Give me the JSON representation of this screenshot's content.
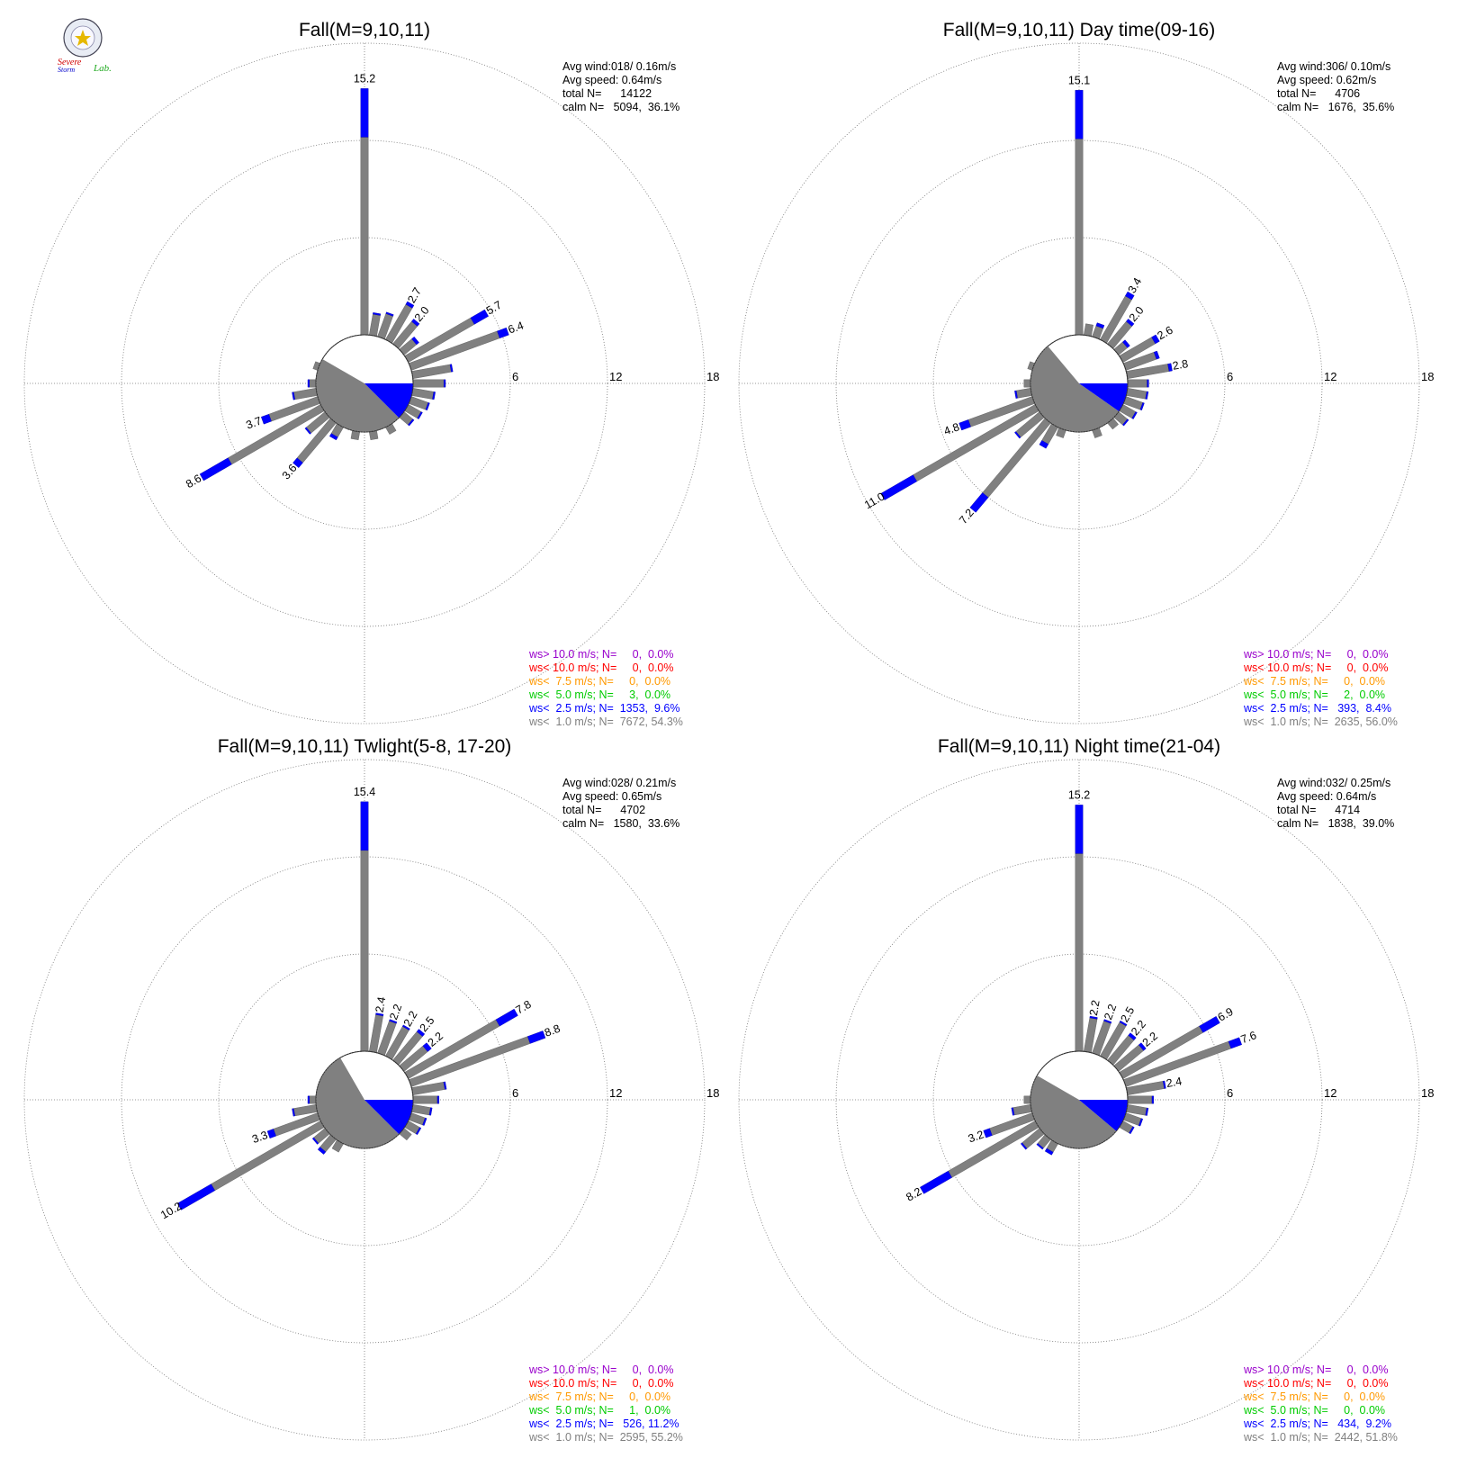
{
  "logo": {
    "text_severe": "Severe",
    "text_storm": "Storm",
    "text_lab": "Lab."
  },
  "colors": {
    "gt10": "#9900cc",
    "lt10": "#ff0000",
    "lt75": "#ff9900",
    "lt5": "#00cc00",
    "lt25": "#0000ff",
    "lt1": "#808080",
    "calm_gray": "#808080"
  },
  "chart_data": [
    {
      "type": "polar-bar (wind rose)",
      "title": "Fall(M=9,10,11)",
      "rlim": [
        0,
        18
      ],
      "ring_ticks": [
        "6",
        "12",
        "18"
      ],
      "stats": [
        "Avg wind:018/ 0.16m/s",
        "Avg speed: 0.64m/s",
        "total N=      14122",
        "calm N=   5094,  36.1%"
      ],
      "legend": [
        "ws> 10.0 m/s; N=     0,  0.0%",
        "ws< 10.0 m/s; N=     0,  0.0%",
        "ws<  7.5 m/s; N=     0,  0.0%",
        "ws<  5.0 m/s; N=     3,  0.0%",
        "ws<  2.5 m/s; N=  1353,  9.6%",
        "ws<  1.0 m/s; N=  7672, 54.3%"
      ],
      "calm_sector": {
        "blue_from_deg": 90,
        "blue_to_deg": 135,
        "gray_from_deg": 135,
        "gray_to_deg": 300
      },
      "bars": [
        {
          "dir": 0,
          "total": 15.2,
          "blue": 3.0,
          "label": "15.2"
        },
        {
          "dir": 10,
          "total": 1.4,
          "blue": 0.1
        },
        {
          "dir": 20,
          "total": 1.6,
          "blue": 0.1
        },
        {
          "dir": 30,
          "total": 2.7,
          "blue": 0.2,
          "label": "2.7"
        },
        {
          "dir": 40,
          "total": 2.0,
          "blue": 0.2,
          "label": "2.0"
        },
        {
          "dir": 50,
          "total": 1.2,
          "blue": 0.2
        },
        {
          "dir": 60,
          "total": 5.7,
          "blue": 1.0,
          "label": "5.7"
        },
        {
          "dir": 70,
          "total": 6.4,
          "blue": 0.6,
          "label": "6.4"
        },
        {
          "dir": 80,
          "total": 2.5,
          "blue": 0.1
        },
        {
          "dir": 90,
          "total": 2.0,
          "blue": 0.1
        },
        {
          "dir": 100,
          "total": 1.4,
          "blue": 0.1
        },
        {
          "dir": 110,
          "total": 1.2,
          "blue": 0.1
        },
        {
          "dir": 120,
          "total": 1.0,
          "blue": 0.1
        },
        {
          "dir": 130,
          "total": 0.8,
          "blue": 0.1
        },
        {
          "dir": 150,
          "total": 0.5,
          "blue": 0.0
        },
        {
          "dir": 170,
          "total": 0.5,
          "blue": 0.0
        },
        {
          "dir": 190,
          "total": 0.5,
          "blue": 0.0
        },
        {
          "dir": 210,
          "total": 0.9,
          "blue": 0.2
        },
        {
          "dir": 220,
          "total": 3.6,
          "blue": 0.4,
          "label": "3.6"
        },
        {
          "dir": 230,
          "total": 1.6,
          "blue": 0.1
        },
        {
          "dir": 240,
          "total": 8.6,
          "blue": 2.0,
          "label": "8.6"
        },
        {
          "dir": 250,
          "total": 3.7,
          "blue": 0.5,
          "label": "3.7"
        },
        {
          "dir": 260,
          "total": 1.5,
          "blue": 0.1
        },
        {
          "dir": 270,
          "total": 0.5,
          "blue": 0.1
        },
        {
          "dir": 290,
          "total": 0.3,
          "blue": 0.0
        }
      ]
    },
    {
      "type": "polar-bar (wind rose)",
      "title": "Fall(M=9,10,11) Day time(09-16)",
      "rlim": [
        0,
        18
      ],
      "ring_ticks": [
        "6",
        "12",
        "18"
      ],
      "stats": [
        "Avg wind:306/ 0.10m/s",
        "Avg speed: 0.62m/s",
        "total N=      4706",
        "calm N=   1676,  35.6%"
      ],
      "legend": [
        "ws> 10.0 m/s; N=     0,  0.0%",
        "ws< 10.0 m/s; N=     0,  0.0%",
        "ws<  7.5 m/s; N=     0,  0.0%",
        "ws<  5.0 m/s; N=     2,  0.0%",
        "ws<  2.5 m/s; N=   393,  8.4%",
        "ws<  1.0 m/s; N=  2635, 56.0%"
      ],
      "calm_sector": {
        "blue_from_deg": 90,
        "blue_to_deg": 125,
        "gray_from_deg": 125,
        "gray_to_deg": 320
      },
      "bars": [
        {
          "dir": 0,
          "total": 15.1,
          "blue": 3.0,
          "label": "15.1"
        },
        {
          "dir": 10,
          "total": 0.7,
          "blue": 0.0
        },
        {
          "dir": 20,
          "total": 0.9,
          "blue": 0.2
        },
        {
          "dir": 30,
          "total": 3.4,
          "blue": 0.3,
          "label": "3.4"
        },
        {
          "dir": 40,
          "total": 2.0,
          "blue": 0.2,
          "label": "2.0"
        },
        {
          "dir": 50,
          "total": 0.9,
          "blue": 0.2
        },
        {
          "dir": 60,
          "total": 2.6,
          "blue": 0.3,
          "label": "2.6"
        },
        {
          "dir": 70,
          "total": 2.2,
          "blue": 0.2
        },
        {
          "dir": 80,
          "total": 2.8,
          "blue": 0.2,
          "label": "2.8"
        },
        {
          "dir": 90,
          "total": 1.3,
          "blue": 0.1
        },
        {
          "dir": 100,
          "total": 1.3,
          "blue": 0.1
        },
        {
          "dir": 110,
          "total": 1.2,
          "blue": 0.1
        },
        {
          "dir": 120,
          "total": 1.0,
          "blue": 0.1
        },
        {
          "dir": 130,
          "total": 0.8,
          "blue": 0.1
        },
        {
          "dir": 140,
          "total": 0.5,
          "blue": 0.0
        },
        {
          "dir": 160,
          "total": 0.5,
          "blue": 0.0
        },
        {
          "dir": 200,
          "total": 0.5,
          "blue": 0.0
        },
        {
          "dir": 210,
          "total": 1.5,
          "blue": 0.3
        },
        {
          "dir": 220,
          "total": 7.2,
          "blue": 1.2,
          "label": "7.2"
        },
        {
          "dir": 230,
          "total": 2.0,
          "blue": 0.1
        },
        {
          "dir": 240,
          "total": 11.0,
          "blue": 2.3,
          "label": "11.0"
        },
        {
          "dir": 250,
          "total": 4.8,
          "blue": 0.6,
          "label": "4.8"
        },
        {
          "dir": 260,
          "total": 1.0,
          "blue": 0.1
        },
        {
          "dir": 270,
          "total": 0.4,
          "blue": 0.0
        },
        {
          "dir": 290,
          "total": 0.3,
          "blue": 0.0
        }
      ]
    },
    {
      "type": "polar-bar (wind rose)",
      "title": "Fall(M=9,10,11) Twlight(5-8, 17-20)",
      "rlim": [
        0,
        18
      ],
      "ring_ticks": [
        "6",
        "12",
        "18"
      ],
      "stats": [
        "Avg wind:028/ 0.21m/s",
        "Avg speed: 0.65m/s",
        "total N=      4702",
        "calm N=   1580,  33.6%"
      ],
      "legend": [
        "ws> 10.0 m/s; N=     0,  0.0%",
        "ws< 10.0 m/s; N=     0,  0.0%",
        "ws<  7.5 m/s; N=     0,  0.0%",
        "ws<  5.0 m/s; N=     1,  0.0%",
        "ws<  2.5 m/s; N=   526, 11.2%",
        "ws<  1.0 m/s; N=  2595, 55.2%"
      ],
      "calm_sector": {
        "blue_from_deg": 90,
        "blue_to_deg": 135,
        "gray_from_deg": 135,
        "gray_to_deg": 330
      },
      "bars": [
        {
          "dir": 0,
          "total": 15.4,
          "blue": 3.0,
          "label": "15.4"
        },
        {
          "dir": 10,
          "total": 2.4,
          "blue": 0.1,
          "label": "2.4"
        },
        {
          "dir": 20,
          "total": 2.2,
          "blue": 0.1,
          "label": "2.2"
        },
        {
          "dir": 30,
          "total": 2.2,
          "blue": 0.1,
          "label": "2.2"
        },
        {
          "dir": 40,
          "total": 2.5,
          "blue": 0.2,
          "label": "2.5"
        },
        {
          "dir": 50,
          "total": 2.2,
          "blue": 0.3,
          "label": "2.2"
        },
        {
          "dir": 60,
          "total": 7.8,
          "blue": 1.3,
          "label": "7.8"
        },
        {
          "dir": 70,
          "total": 8.8,
          "blue": 1.0,
          "label": "8.8"
        },
        {
          "dir": 80,
          "total": 2.1,
          "blue": 0.1
        },
        {
          "dir": 90,
          "total": 1.6,
          "blue": 0.1
        },
        {
          "dir": 100,
          "total": 1.2,
          "blue": 0.1
        },
        {
          "dir": 110,
          "total": 1.0,
          "blue": 0.1
        },
        {
          "dir": 120,
          "total": 0.9,
          "blue": 0.1
        },
        {
          "dir": 130,
          "total": 0.6,
          "blue": 0.0
        },
        {
          "dir": 210,
          "total": 0.6,
          "blue": 0.0
        },
        {
          "dir": 220,
          "total": 1.2,
          "blue": 0.2
        },
        {
          "dir": 230,
          "total": 1.0,
          "blue": 0.1
        },
        {
          "dir": 240,
          "total": 10.2,
          "blue": 2.4,
          "label": "10.2"
        },
        {
          "dir": 250,
          "total": 3.3,
          "blue": 0.4,
          "label": "3.3"
        },
        {
          "dir": 260,
          "total": 1.5,
          "blue": 0.1
        },
        {
          "dir": 270,
          "total": 0.5,
          "blue": 0.1
        }
      ]
    },
    {
      "type": "polar-bar (wind rose)",
      "title": "Fall(M=9,10,11) Night time(21-04)",
      "rlim": [
        0,
        18
      ],
      "ring_ticks": [
        "6",
        "12",
        "18"
      ],
      "stats": [
        "Avg wind:032/ 0.25m/s",
        "Avg speed: 0.64m/s",
        "total N=      4714",
        "calm N=   1838,  39.0%"
      ],
      "legend": [
        "ws> 10.0 m/s; N=     0,  0.0%",
        "ws< 10.0 m/s; N=     0,  0.0%",
        "ws<  7.5 m/s; N=     0,  0.0%",
        "ws<  5.0 m/s; N=     0,  0.0%",
        "ws<  2.5 m/s; N=   434,  9.2%",
        "ws<  1.0 m/s; N=  2442, 51.8%"
      ],
      "calm_sector": {
        "blue_from_deg": 90,
        "blue_to_deg": 130,
        "gray_from_deg": 130,
        "gray_to_deg": 300
      },
      "bars": [
        {
          "dir": 0,
          "total": 15.2,
          "blue": 3.0,
          "label": "15.2"
        },
        {
          "dir": 10,
          "total": 2.2,
          "blue": 0.1,
          "label": "2.2"
        },
        {
          "dir": 20,
          "total": 2.2,
          "blue": 0.1,
          "label": "2.2"
        },
        {
          "dir": 30,
          "total": 2.5,
          "blue": 0.1,
          "label": "2.5"
        },
        {
          "dir": 40,
          "total": 2.2,
          "blue": 0.2,
          "label": "2.2"
        },
        {
          "dir": 50,
          "total": 2.2,
          "blue": 0.2,
          "label": "2.2"
        },
        {
          "dir": 60,
          "total": 6.9,
          "blue": 1.2,
          "label": "6.9"
        },
        {
          "dir": 70,
          "total": 7.6,
          "blue": 0.7,
          "label": "7.6"
        },
        {
          "dir": 80,
          "total": 2.4,
          "blue": 0.1,
          "label": "2.4"
        },
        {
          "dir": 90,
          "total": 1.6,
          "blue": 0.1
        },
        {
          "dir": 100,
          "total": 1.3,
          "blue": 0.1
        },
        {
          "dir": 110,
          "total": 1.1,
          "blue": 0.1
        },
        {
          "dir": 120,
          "total": 0.8,
          "blue": 0.1
        },
        {
          "dir": 210,
          "total": 0.8,
          "blue": 0.2
        },
        {
          "dir": 220,
          "total": 0.8,
          "blue": 0.1
        },
        {
          "dir": 230,
          "total": 1.5,
          "blue": 0.1
        },
        {
          "dir": 240,
          "total": 8.2,
          "blue": 2.0,
          "label": "8.2"
        },
        {
          "dir": 250,
          "total": 3.2,
          "blue": 0.4,
          "label": "3.2"
        },
        {
          "dir": 260,
          "total": 1.2,
          "blue": 0.1
        },
        {
          "dir": 270,
          "total": 0.4,
          "blue": 0.0
        }
      ]
    }
  ]
}
